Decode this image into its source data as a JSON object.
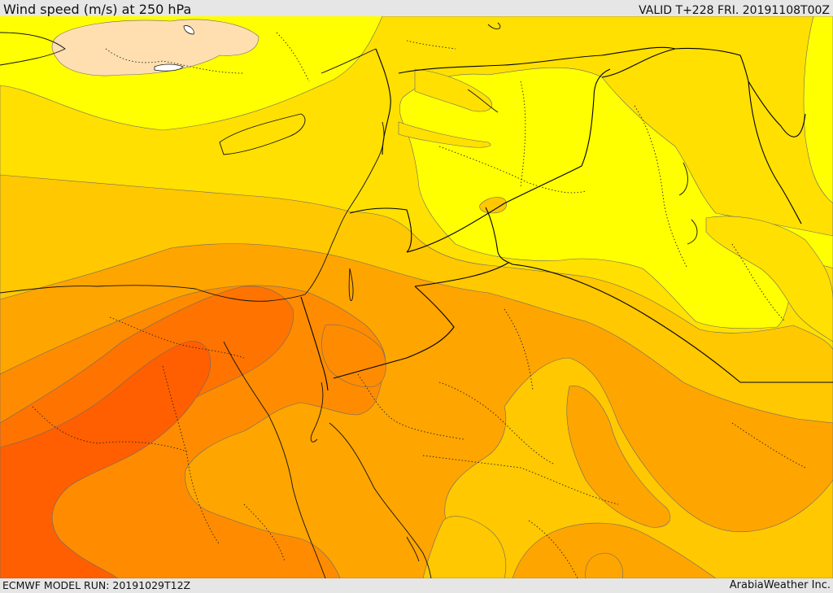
{
  "header": {
    "title": "Wind speed (m/s) at 250 hPa",
    "valid": "VALID T+228 FRI. 20191108T00Z"
  },
  "footer": {
    "model_run": "ECMWF MODEL RUN: 20191029T12Z",
    "credit": "ArabiaWeather Inc."
  },
  "map": {
    "colors": {
      "band_1": "#ffdfb0",
      "band_2": "#ffff00",
      "band_3": "#ffe000",
      "band_4": "#ffc800",
      "band_5": "#ffa500",
      "band_6": "#ff8c00",
      "band_7": "#ff7400",
      "band_8": "#ff5f00"
    }
  }
}
